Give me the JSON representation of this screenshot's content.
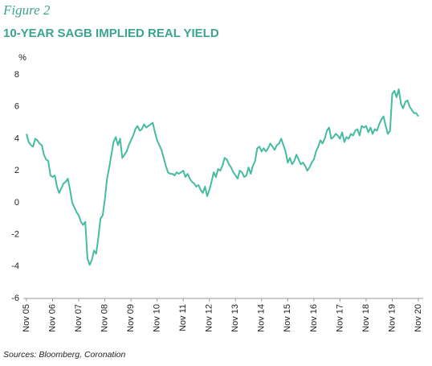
{
  "chart_data": {
    "type": "line",
    "figure_label": "Figure 2",
    "title": "10-YEAR SAGB IMPLIED REAL YIELD",
    "ylabel": "%",
    "source": "Sources: Bloomberg, Coronation",
    "color": "#45bba1",
    "ylim": [
      -6,
      8
    ],
    "yticks": [
      -6,
      -4,
      -2,
      0,
      2,
      4,
      6,
      8
    ],
    "xlim": [
      0,
      180
    ],
    "xticks": [
      {
        "value": 0,
        "label": "Nov 05"
      },
      {
        "value": 12,
        "label": "Nov 06"
      },
      {
        "value": 24,
        "label": "Nov 07"
      },
      {
        "value": 36,
        "label": "Nov 08"
      },
      {
        "value": 48,
        "label": "Nov 09"
      },
      {
        "value": 60,
        "label": "Nov 10"
      },
      {
        "value": 72,
        "label": "Nov 11"
      },
      {
        "value": 84,
        "label": "Nov 12"
      },
      {
        "value": 96,
        "label": "Nov 13"
      },
      {
        "value": 108,
        "label": "Nov 14"
      },
      {
        "value": 120,
        "label": "Nov 15"
      },
      {
        "value": 132,
        "label": "Nov 16"
      },
      {
        "value": 144,
        "label": "Nov 17"
      },
      {
        "value": 156,
        "label": "Nov 18"
      },
      {
        "value": 168,
        "label": "Nov 19"
      },
      {
        "value": 180,
        "label": "Nov 20"
      }
    ],
    "values": [
      4.3,
      3.8,
      3.6,
      3.5,
      4.0,
      3.9,
      3.7,
      3.6,
      3.0,
      2.7,
      2.6,
      1.7,
      1.6,
      1.7,
      1.0,
      0.6,
      0.9,
      1.2,
      1.3,
      1.5,
      0.8,
      0,
      -0.3,
      -0.6,
      -0.8,
      -1.2,
      -1.4,
      -1.2,
      -3.5,
      -3.9,
      -3.6,
      -3.0,
      -3.2,
      -2.2,
      -1.0,
      -0.8,
      0.2,
      1.5,
      2.2,
      3.0,
      3.8,
      4.1,
      3.6,
      4.0,
      2.8,
      3.0,
      3.2,
      3.6,
      3.9,
      4.2,
      4.6,
      4.8,
      4.5,
      4.6,
      4.9,
      4.7,
      4.8,
      4.9,
      5.0,
      4.4,
      3.9,
      3.6,
      3.3,
      2.8,
      2.3,
      1.9,
      1.8,
      1.8,
      1.7,
      1.9,
      1.8,
      1.9,
      2.0,
      1.6,
      1.8,
      1.5,
      1.3,
      1.2,
      1.0,
      1.1,
      0.8,
      0.6,
      1.0,
      0.4,
      0.8,
      1.3,
      1.9,
      1.6,
      2.1,
      2.0,
      2.3,
      2.8,
      2.7,
      2.4,
      2.2,
      1.9,
      1.7,
      1.5,
      2.0,
      1.9,
      1.6,
      1.7,
      2.2,
      1.8,
      2.3,
      2.6,
      3.4,
      3.5,
      3.2,
      3.4,
      3.2,
      3.4,
      3.7,
      3.5,
      3.3,
      3.6,
      3.7,
      4.0,
      3.6,
      3.2,
      2.5,
      2.8,
      2.4,
      2.6,
      3.0,
      2.7,
      2.4,
      2.5,
      2.3,
      2.0,
      2.2,
      2.5,
      2.7,
      3.2,
      3.5,
      3.9,
      3.7,
      4.0,
      4.5,
      4.7,
      4.0,
      4.1,
      4.3,
      4.2,
      4.0,
      4.4,
      3.8,
      4.1,
      4.0,
      4.3,
      4.2,
      4.5,
      4.6,
      4.2,
      4.8,
      4.7,
      4.8,
      4.4,
      4.7,
      4.3,
      4.6,
      4.5,
      4.9,
      5.2,
      5.4,
      4.8,
      4.3,
      4.5,
      6.8,
      7.0,
      6.6,
      7.1,
      6.2,
      5.9,
      6.3,
      6.4,
      6.0,
      5.8,
      5.6,
      5.6,
      5.4
    ]
  }
}
